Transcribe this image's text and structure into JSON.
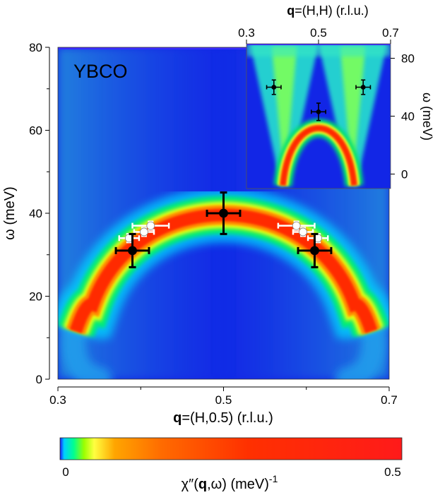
{
  "chart_data": [
    {
      "type": "heatmap",
      "name": "main",
      "label": "YBCO",
      "xlabel": {
        "bold": "q",
        "rest": "=(H,0.5) (r.l.u.)"
      },
      "ylabel": "ω (meV)",
      "xlim": [
        0.3,
        0.7
      ],
      "ylim": [
        0,
        80
      ],
      "xticks": [
        "0.3",
        "0.5",
        "0.7"
      ],
      "yticks": [
        "0",
        "20",
        "40",
        "60",
        "80"
      ],
      "dispersion": {
        "center_H": 0.5,
        "peak_omega": 40,
        "edge_H": [
          0.342,
          0.658
        ],
        "edge_omega": 18
      },
      "points_black": [
        {
          "h": 0.39,
          "w": 31,
          "herr": 0.02,
          "werr": 4
        },
        {
          "h": 0.5,
          "w": 40,
          "herr": 0.02,
          "werr": 5
        },
        {
          "h": 0.61,
          "w": 31,
          "herr": 0.02,
          "werr": 4
        }
      ],
      "points_white": [
        {
          "h": 0.386,
          "w": 34,
          "herr": 0.012,
          "werr": 1
        },
        {
          "h": 0.404,
          "w": 35.5,
          "herr": 0.012,
          "werr": 1
        },
        {
          "h": 0.412,
          "w": 37,
          "herr": 0.022,
          "werr": 1
        },
        {
          "h": 0.588,
          "w": 37,
          "herr": 0.022,
          "werr": 1
        },
        {
          "h": 0.596,
          "w": 35.5,
          "herr": 0.012,
          "werr": 1
        },
        {
          "h": 0.614,
          "w": 34,
          "herr": 0.012,
          "werr": 1
        }
      ]
    },
    {
      "type": "heatmap",
      "name": "inset",
      "xlabel": {
        "bold": "q",
        "rest": "=(H,H) (r.l.u.)"
      },
      "ylabel": "ω (meV)",
      "xlim": [
        0.3,
        0.7
      ],
      "ylim": [
        -10,
        90
      ],
      "xticks": [
        "0.3",
        "0.5",
        "0.7"
      ],
      "yticks": [
        "0",
        "40",
        "80"
      ],
      "points_black": [
        {
          "h": 0.376,
          "w": 60,
          "herr": 0.02,
          "werr": 5
        },
        {
          "h": 0.5,
          "w": 43,
          "herr": 0.02,
          "werr": 6
        },
        {
          "h": 0.624,
          "w": 60,
          "herr": 0.02,
          "werr": 5
        }
      ]
    }
  ],
  "colorbar": {
    "min_label": "0",
    "max_label": "0.5",
    "label": {
      "pre": "χ″(",
      "bold": "q",
      "mid": ",ω) (meV)",
      "sup": "-1"
    }
  }
}
